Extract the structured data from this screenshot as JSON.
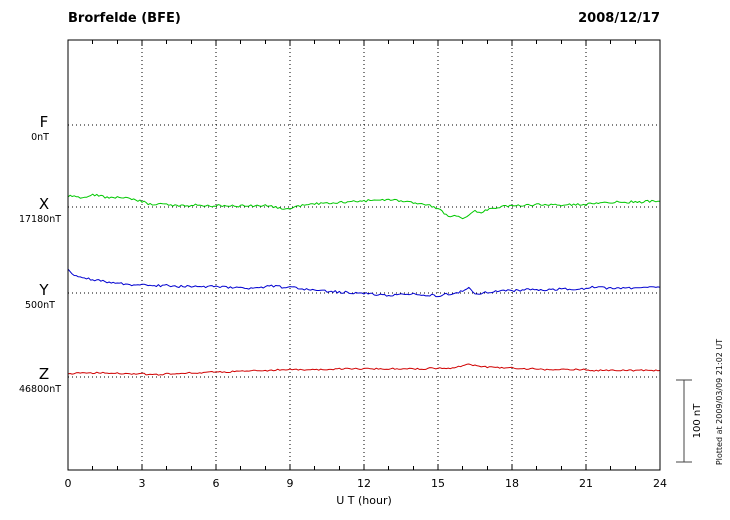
{
  "header": {
    "title": "Brorfelde (BFE)",
    "date": "2008/12/17"
  },
  "axis": {
    "xlabel": "U T (hour)",
    "ticks": [
      "0",
      "3",
      "6",
      "9",
      "12",
      "15",
      "18",
      "21",
      "24"
    ]
  },
  "scalebar": {
    "label": "100 nT",
    "span_nT": 100
  },
  "footer_note": "Plotted at 2009/03/09 21:02 UT",
  "colors": {
    "background": "#ffffff",
    "axis": "#000000"
  },
  "chart_data": {
    "type": "line",
    "title": "Brorfelde (BFE) magnetogram 2008/12/17",
    "xlabel": "U T (hour)",
    "x_range": [
      0,
      24
    ],
    "x_tick_step": 3,
    "sample_interval_hours": 0.25,
    "scale_nT_per_division": 100,
    "units": "nT offset relative to each channel baseline",
    "grid": "dotted vertical every 3 h, dotted horizontal baseline per channel",
    "channels": [
      {
        "id": "F",
        "label": "F",
        "baseline_label": "0nT",
        "color": "#e8a200",
        "values": []
      },
      {
        "id": "X",
        "label": "X",
        "baseline_label": "17180nT",
        "color": "#00c800",
        "values": [
          13,
          14,
          12,
          13,
          15,
          14,
          12,
          11,
          12,
          11,
          10,
          8,
          7,
          4,
          2,
          5,
          3,
          1,
          2,
          1,
          2,
          3,
          2,
          1,
          2,
          1,
          2,
          2,
          1,
          2,
          1,
          2,
          2,
          1,
          -1,
          -3,
          -2,
          0,
          2,
          3,
          4,
          4,
          5,
          5,
          6,
          6,
          6,
          7,
          7,
          8,
          8,
          8,
          9,
          8,
          7,
          6,
          5,
          4,
          3,
          1,
          -2,
          -8,
          -12,
          -10,
          -14,
          -9,
          -5,
          -7,
          -3,
          -1,
          0,
          1,
          1,
          2,
          2,
          2,
          3,
          3,
          2,
          3,
          2,
          3,
          3,
          3,
          3,
          4,
          4,
          5,
          5,
          6,
          6,
          6,
          7,
          6,
          7,
          7,
          7
        ]
      },
      {
        "id": "Y",
        "label": "Y",
        "baseline_label": "500nT",
        "color": "#0000d0",
        "values": [
          28,
          22,
          20,
          18,
          16,
          15,
          14,
          13,
          12,
          11,
          10,
          10,
          10,
          9,
          9,
          9,
          9,
          8,
          8,
          8,
          8,
          8,
          7,
          8,
          8,
          7,
          7,
          7,
          6,
          6,
          6,
          6,
          7,
          9,
          8,
          7,
          7,
          6,
          5,
          4,
          4,
          3,
          2,
          2,
          1,
          1,
          0,
          0,
          0,
          -1,
          -2,
          -3,
          -3,
          -2,
          -2,
          -1,
          -1,
          -2,
          -3,
          -2,
          -4,
          -2,
          -1,
          0,
          2,
          8,
          -2,
          0,
          1,
          2,
          2,
          3,
          3,
          3,
          4,
          4,
          4,
          4,
          4,
          4,
          5,
          5,
          5,
          5,
          5,
          7,
          8,
          6,
          6,
          6,
          6,
          6,
          7,
          7,
          7,
          7,
          7
        ]
      },
      {
        "id": "Z",
        "label": "Z",
        "baseline_label": "46800nT",
        "color": "#d00000",
        "values": [
          4,
          4,
          5,
          5,
          5,
          5,
          5,
          5,
          5,
          4,
          4,
          4,
          4,
          3,
          3,
          3,
          4,
          4,
          4,
          5,
          5,
          5,
          5,
          6,
          6,
          6,
          6,
          7,
          7,
          7,
          8,
          8,
          8,
          8,
          9,
          9,
          9,
          9,
          9,
          9,
          9,
          9,
          9,
          9,
          10,
          10,
          10,
          10,
          10,
          10,
          10,
          10,
          10,
          10,
          10,
          10,
          10,
          10,
          10,
          11,
          10,
          11,
          11,
          12,
          13,
          16,
          14,
          13,
          12,
          12,
          11,
          11,
          11,
          10,
          10,
          10,
          10,
          9,
          9,
          9,
          9,
          9,
          9,
          9,
          9,
          8,
          8,
          8,
          8,
          8,
          8,
          8,
          8,
          8,
          8,
          8,
          8
        ]
      }
    ]
  }
}
